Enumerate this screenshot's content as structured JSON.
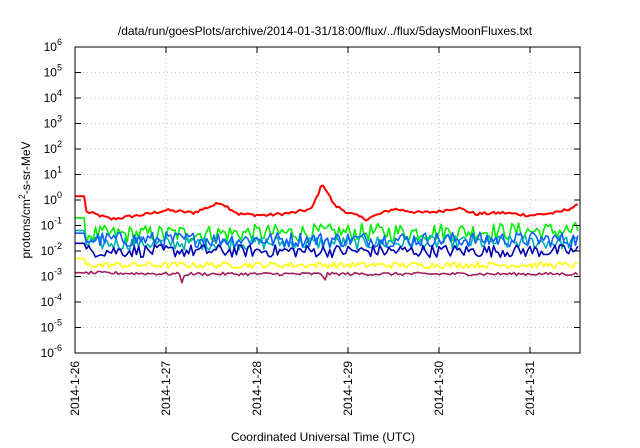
{
  "chart_data": {
    "type": "line",
    "title": "/data/run/goesPlots/archive/2014-01-31/18:00/flux/../flux/5daysMoonFluxes.txt",
    "xlabel": "Coordinated Universal Time (UTC)",
    "ylabel": "protons/cm2-s-sr-MeV",
    "ylabel_parts": {
      "pre": "protons/cm",
      "sup": "2",
      "post": "-s-sr-MeV"
    },
    "yscale": "log",
    "ylim_exp": [
      -6,
      6
    ],
    "ytick_base": "10",
    "yticks_exp": [
      -6,
      -5,
      -4,
      -3,
      -2,
      -1,
      0,
      1,
      2,
      3,
      4,
      5,
      6
    ],
    "xlim_days": [
      "2014-01-26",
      "2014-01-31 ~18:00"
    ],
    "xticks": [
      "2014-1-26",
      "2014-1-27",
      "2014-1-28",
      "2014-1-29",
      "2014-1-30",
      "2014-1-31"
    ],
    "grid": true,
    "series": [
      {
        "color": "#ff0000",
        "base_log": -0.55,
        "anchors": [
          [
            0.0,
            0.15
          ],
          [
            0.1,
            0.15
          ],
          [
            0.12,
            -0.45
          ],
          [
            0.4,
            -0.75
          ],
          [
            0.8,
            -0.55
          ],
          [
            1.0,
            -0.4
          ],
          [
            1.3,
            -0.5
          ],
          [
            1.6,
            -0.1
          ],
          [
            1.8,
            -0.55
          ],
          [
            2.1,
            -0.6
          ],
          [
            2.4,
            -0.5
          ],
          [
            2.6,
            -0.35
          ],
          [
            2.72,
            0.65
          ],
          [
            2.85,
            -0.2
          ],
          [
            3.0,
            -0.5
          ],
          [
            3.2,
            -0.75
          ],
          [
            3.5,
            -0.35
          ],
          [
            3.8,
            -0.5
          ],
          [
            4.0,
            -0.45
          ],
          [
            4.2,
            -0.3
          ],
          [
            4.4,
            -0.55
          ],
          [
            4.7,
            -0.5
          ],
          [
            5.0,
            -0.6
          ],
          [
            5.3,
            -0.5
          ],
          [
            5.5,
            -0.25
          ],
          [
            5.75,
            0.05
          ]
        ],
        "noise": 0.06
      },
      {
        "color": "#00ee00",
        "base_log": -1.2,
        "anchors": [
          [
            0.0,
            -0.7
          ],
          [
            0.1,
            -0.7
          ],
          [
            0.12,
            -1.35
          ],
          [
            5.75,
            -1.2
          ]
        ],
        "noise": 0.35
      },
      {
        "color": "#00b0b0",
        "base_log": -1.65,
        "anchors": [
          [
            0.0,
            -1.2
          ],
          [
            0.1,
            -1.2
          ],
          [
            0.12,
            -1.7
          ],
          [
            5.75,
            -1.65
          ]
        ],
        "noise": 0.28
      },
      {
        "color": "#1060ff",
        "base_log": -1.5,
        "anchors": [
          [
            0.0,
            -1.3
          ],
          [
            0.1,
            -1.3
          ],
          [
            0.12,
            -1.55
          ],
          [
            5.75,
            -1.55
          ]
        ],
        "noise": 0.3
      },
      {
        "color": "#0000b0",
        "base_log": -1.95,
        "anchors": [
          [
            0.0,
            -1.7
          ],
          [
            0.1,
            -1.7
          ],
          [
            0.12,
            -2.0
          ],
          [
            5.75,
            -2.0
          ]
        ],
        "noise": 0.25
      },
      {
        "color": "#ffff00",
        "base_log": -2.5,
        "anchors": [
          [
            0.0,
            -2.3
          ],
          [
            0.1,
            -2.3
          ],
          [
            0.12,
            -2.55
          ],
          [
            5.75,
            -2.55
          ]
        ],
        "noise": 0.12
      },
      {
        "color": "#a02060",
        "base_log": -2.9,
        "anchors": [
          [
            0.0,
            -2.85
          ],
          [
            1.15,
            -2.9
          ],
          [
            1.18,
            -3.25
          ],
          [
            1.21,
            -2.9
          ],
          [
            2.72,
            -2.9
          ],
          [
            2.74,
            -3.2
          ],
          [
            2.77,
            -2.9
          ],
          [
            5.75,
            -2.9
          ]
        ],
        "noise": 0.06
      }
    ]
  }
}
